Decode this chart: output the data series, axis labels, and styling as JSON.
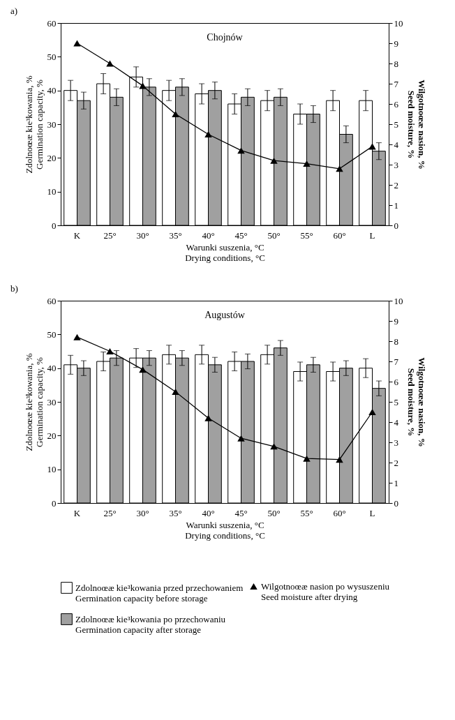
{
  "chart_data": [
    {
      "type": "bar",
      "title": "a)",
      "annotations": [
        "Chojnów"
      ],
      "categories": [
        "K",
        "25°",
        "30°",
        "35°",
        "40°",
        "45°",
        "50°",
        "55°",
        "60°",
        "L"
      ],
      "xlabel": "Warunki suszenia, °C\nDrying conditions, °C",
      "ylabel": "Zdolnoœæ kie³kowania, %\nGermination capacity, %",
      "y2label": "Wilgotnoœæ nasion, %\nSeed moisture, %",
      "ylim": [
        0,
        60
      ],
      "yticks": [
        0,
        10,
        20,
        30,
        40,
        50,
        60
      ],
      "y2lim": [
        0,
        10
      ],
      "y2ticks": [
        0,
        1,
        2,
        3,
        4,
        5,
        6,
        7,
        8,
        9,
        10
      ],
      "legend": false,
      "series": [
        {
          "color": "#ffffff",
          "values": [
            40,
            42,
            44,
            40,
            39,
            36,
            37,
            33,
            37,
            37
          ],
          "errors": [
            3,
            3,
            3,
            3,
            3,
            3,
            3,
            3,
            3,
            3
          ]
        },
        {
          "color": "#a0a0a0",
          "values": [
            37,
            38,
            41,
            41,
            40,
            38,
            38,
            33,
            27,
            22
          ],
          "errors": [
            2.5,
            2.5,
            2.5,
            2.5,
            2.5,
            2.5,
            2.5,
            2.5,
            2.5,
            2.5
          ]
        },
        {
          "type": "line",
          "axis": "y2",
          "marker": "triangle",
          "color": "#000000",
          "values": [
            9,
            8,
            6.9,
            5.5,
            4.5,
            3.7,
            3.2,
            3.05,
            2.8,
            3.9
          ]
        }
      ]
    },
    {
      "type": "bar",
      "title": "b)",
      "annotations": [
        "Augustów"
      ],
      "categories": [
        "K",
        "25°",
        "30°",
        "35°",
        "40°",
        "45°",
        "50°",
        "55°",
        "60°",
        "L"
      ],
      "xlabel": "Warunki suszenia, °C\nDrying conditions, °C",
      "ylabel": "Zdolnoœæ kie³kowania, %\nGermination capacity, %",
      "y2label": "Wilgotnoœæ nasion, %\nSeed moisture, %",
      "ylim": [
        0,
        60
      ],
      "yticks": [
        0,
        10,
        20,
        30,
        40,
        50,
        60
      ],
      "y2lim": [
        0,
        10
      ],
      "y2ticks": [
        0,
        1,
        2,
        3,
        4,
        5,
        6,
        7,
        8,
        9,
        10
      ],
      "legend": "bottom",
      "series": [
        {
          "name": "Zdolnoœæ kie³kowania przed przechowaniem\nGermination capacity before storage",
          "color": "#ffffff",
          "values": [
            41,
            42,
            43,
            44,
            44,
            42,
            44,
            39,
            39,
            40
          ],
          "errors": [
            2.8,
            2.8,
            2.8,
            2.8,
            2.8,
            2.8,
            2.8,
            2.8,
            2.8,
            2.8
          ]
        },
        {
          "name": "Zdolnoœæ kie³kowania po przechowaniu\nGermination capacity after storage",
          "color": "#a0a0a0",
          "values": [
            40,
            43,
            43,
            43,
            41,
            42,
            46,
            41,
            40,
            34
          ],
          "errors": [
            2.2,
            2.2,
            2.2,
            2.2,
            2.2,
            2.2,
            2.2,
            2.2,
            2.2,
            2.2
          ]
        },
        {
          "name": "Wilgotnoœæ nasion po wysuszeniu\nSeed moisture after drying",
          "type": "line",
          "axis": "y2",
          "marker": "triangle",
          "color": "#000000",
          "values": [
            8.2,
            7.5,
            6.6,
            5.5,
            4.2,
            3.2,
            2.8,
            2.2,
            2.15,
            4.5
          ]
        }
      ]
    }
  ]
}
